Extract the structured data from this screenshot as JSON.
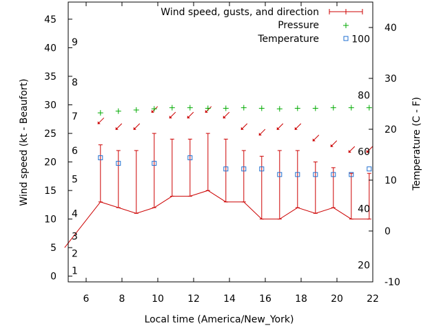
{
  "chart_data": {
    "type": "line",
    "xlabel": "Local time (America/New_York)",
    "ylabel_left": "Wind speed (kt - Beaufort)",
    "ylabel_right": "Temperature (C - F)",
    "xlim": [
      5,
      22
    ],
    "ylim_left": [
      -1,
      48
    ],
    "ylim_right": [
      -10,
      45
    ],
    "x_ticks": [
      6,
      8,
      10,
      12,
      14,
      16,
      18,
      20,
      22
    ],
    "y_left_ticks": [
      0,
      5,
      10,
      15,
      20,
      25,
      30,
      35,
      40,
      45
    ],
    "y_right_ticks": [
      -10,
      0,
      10,
      20,
      30,
      40
    ],
    "beaufort_labels": [
      {
        "label": "1",
        "kt": 1
      },
      {
        "label": "2",
        "kt": 4
      },
      {
        "label": "3",
        "kt": 7
      },
      {
        "label": "4",
        "kt": 11
      },
      {
        "label": "5",
        "kt": 17
      },
      {
        "label": "6",
        "kt": 22
      },
      {
        "label": "7",
        "kt": 28
      },
      {
        "label": "8",
        "kt": 34
      },
      {
        "label": "9",
        "kt": 41
      }
    ],
    "fahrenheit_labels": [
      {
        "label": "20",
        "c": -6.7
      },
      {
        "label": "40",
        "c": 4.4
      },
      {
        "label": "60",
        "c": 15.6
      },
      {
        "label": "80",
        "c": 26.7
      },
      {
        "label": "100",
        "c": 37.8
      }
    ],
    "legend": [
      {
        "name": "Wind speed, gusts, and direction",
        "color": "#cc0000",
        "marker": "line"
      },
      {
        "name": "Pressure",
        "color": "#00aa00",
        "marker": "plus"
      },
      {
        "name": "Temperature",
        "color": "#1f6fd0",
        "marker": "square"
      }
    ],
    "series": [
      {
        "name": "Wind speed, gusts, and direction",
        "x": [
          4.8,
          6.8,
          7.8,
          8.8,
          9.8,
          10.8,
          11.8,
          12.8,
          13.8,
          14.8,
          15.8,
          16.8,
          17.8,
          18.8,
          19.8,
          20.8,
          21.8
        ],
        "values": [
          5,
          13,
          12,
          11,
          12,
          14,
          14,
          15,
          13,
          13,
          10,
          10,
          12,
          11,
          12,
          10,
          10
        ],
        "gusts": [
          null,
          23,
          22,
          22,
          25,
          24,
          24,
          25,
          24,
          22,
          21,
          22,
          22,
          20,
          19,
          18,
          18
        ],
        "direction_arrows_x": [
          6.8,
          7.8,
          8.8,
          9.8,
          10.8,
          11.8,
          12.8,
          13.8,
          14.8,
          15.8,
          16.8,
          17.8,
          18.8,
          19.8,
          20.8,
          21.8
        ],
        "direction_arrows_y": [
          27,
          26,
          26,
          29,
          28,
          28,
          29,
          28,
          26,
          25,
          26,
          26,
          24,
          23,
          22,
          22
        ]
      },
      {
        "name": "Pressure",
        "x": [
          6.8,
          7.8,
          8.8,
          9.8,
          10.8,
          11.8,
          12.8,
          13.8,
          14.8,
          15.8,
          16.8,
          17.8,
          18.8,
          19.8,
          20.8,
          21.8
        ],
        "values": [
          28.6,
          28.9,
          29.1,
          29.3,
          29.5,
          29.5,
          29.4,
          29.4,
          29.5,
          29.4,
          29.3,
          29.4,
          29.4,
          29.5,
          29.5,
          29.5
        ]
      },
      {
        "name": "Temperature",
        "x": [
          6.8,
          7.8,
          9.8,
          11.8,
          13.8,
          14.8,
          15.8,
          16.8,
          17.8,
          18.8,
          19.8,
          20.8,
          21.8
        ],
        "values": [
          14.4,
          13.3,
          13.3,
          14.4,
          12.2,
          12.2,
          12.2,
          11.1,
          11.1,
          11.1,
          11.1,
          11.1,
          12.2
        ]
      }
    ]
  }
}
